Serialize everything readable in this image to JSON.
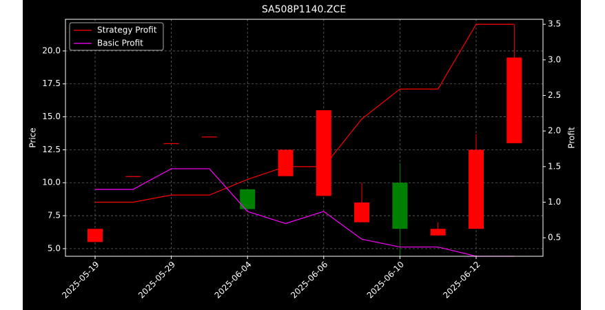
{
  "chart_data": {
    "type": "candlestick",
    "title": "SA508P1140.ZCE",
    "ylabel": "Price",
    "y2label": "Profit",
    "categories": [
      "2025-05-19",
      null,
      "2025-05-29",
      null,
      "2025-06-04",
      null,
      "2025-06-06",
      null,
      "2025-06-10",
      null,
      "2025-06-12",
      null
    ],
    "open": [
      5.5,
      10.5,
      13.0,
      13.5,
      9.5,
      10.5,
      9.0,
      7.0,
      10.0,
      6.0,
      6.5,
      13.0
    ],
    "high": [
      6.5,
      10.5,
      13.0,
      13.5,
      9.5,
      12.5,
      15.5,
      10.0,
      11.5,
      7.0,
      13.7,
      22.0
    ],
    "low": [
      5.5,
      10.5,
      13.0,
      13.5,
      8.0,
      10.5,
      9.0,
      7.0,
      4.4,
      6.0,
      6.5,
      13.0
    ],
    "close": [
      6.5,
      10.5,
      13.0,
      13.5,
      8.0,
      12.5,
      15.5,
      8.5,
      6.5,
      6.5,
      12.5,
      19.5
    ],
    "up_color": "#ff0000",
    "down_color": "#008000",
    "series": [
      {
        "name": "Strategy Profit",
        "color": "#ff0000",
        "axis": "y2",
        "values": [
          1.0,
          1.0,
          1.1,
          1.1,
          1.32,
          1.5,
          1.5,
          2.17,
          2.59,
          2.59,
          3.5,
          3.5
        ]
      },
      {
        "name": "Basic Profit",
        "color": "#ff00ff",
        "axis": "y2",
        "values": [
          1.18,
          1.18,
          1.47,
          1.47,
          0.87,
          0.7,
          0.87,
          0.48,
          0.37,
          0.37,
          0.24,
          0.24
        ]
      }
    ],
    "ylim": [
      4.42,
      22.4
    ],
    "yticks": [
      {
        "value": 5,
        "label": "5.0"
      },
      {
        "value": 7.5,
        "label": "7.5"
      },
      {
        "value": 10,
        "label": "10.0"
      },
      {
        "value": 12.5,
        "label": "12.5"
      },
      {
        "value": 15,
        "label": "15.0"
      },
      {
        "value": 17.5,
        "label": "17.5"
      },
      {
        "value": 20,
        "label": "20.0"
      }
    ],
    "y2lim": [
      0.24,
      3.57
    ],
    "y2ticks": [
      0.5,
      {
        "value": 1,
        "label": "1.0"
      },
      1.5,
      {
        "value": 2,
        "label": "2.0"
      },
      2.5,
      {
        "value": 3,
        "label": "3.0"
      },
      3.5
    ],
    "grid": true,
    "legend": "upper left"
  }
}
